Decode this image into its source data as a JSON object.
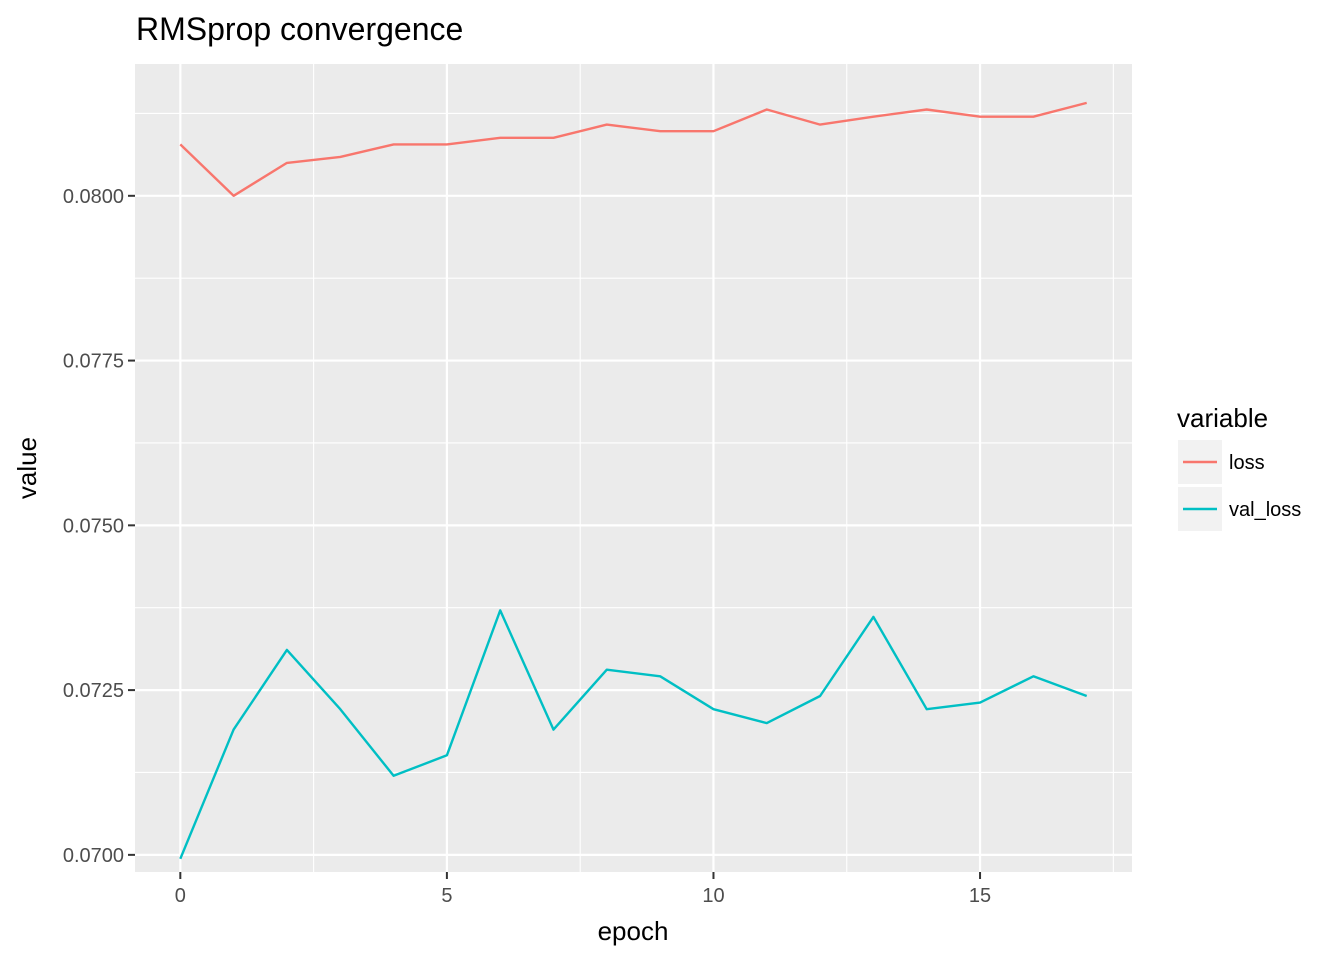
{
  "chart_data": {
    "type": "line",
    "title": "RMSprop convergence",
    "xlabel": "epoch",
    "ylabel": "value",
    "xlim": [
      -0.85,
      17.85
    ],
    "ylim": [
      0.06974,
      0.082
    ],
    "x_ticks": [
      0,
      5,
      10,
      15
    ],
    "x_tick_labels": [
      "0",
      "5",
      "10",
      "15"
    ],
    "x_minor_ticks": [
      2.5,
      7.5,
      12.5,
      17.5
    ],
    "y_ticks": [
      0.07,
      0.0725,
      0.075,
      0.0775,
      0.08
    ],
    "y_tick_labels": [
      "0.0700",
      "0.0725",
      "0.0750",
      "0.0775",
      "0.0800"
    ],
    "y_minor_ticks": [
      0.07125,
      0.07375,
      0.07625,
      0.07875,
      0.08125
    ],
    "grid": true,
    "legend": {
      "title": "variable",
      "position": "right"
    },
    "x": [
      0,
      1,
      2,
      3,
      4,
      5,
      6,
      7,
      8,
      9,
      10,
      11,
      12,
      13,
      14,
      15,
      16,
      17
    ],
    "series": [
      {
        "name": "loss",
        "color": "#F8766D",
        "values": [
          0.08078,
          0.08,
          0.0805,
          0.08059,
          0.08078,
          0.08078,
          0.08088,
          0.08088,
          0.08108,
          0.08098,
          0.08098,
          0.08131,
          0.08108,
          0.0812,
          0.08131,
          0.0812,
          0.0812,
          0.08141
        ]
      },
      {
        "name": "val_loss",
        "color": "#00BFC4",
        "values": [
          0.06994,
          0.0719,
          0.07311,
          0.07221,
          0.0712,
          0.07151,
          0.07371,
          0.0719,
          0.07281,
          0.07271,
          0.07221,
          0.072,
          0.07241,
          0.07361,
          0.07221,
          0.07231,
          0.07271,
          0.07241
        ]
      }
    ]
  }
}
